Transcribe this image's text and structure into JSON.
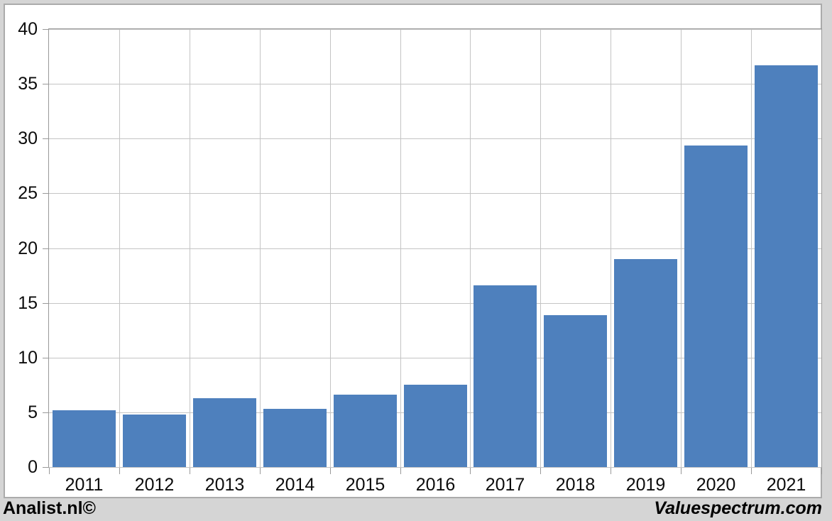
{
  "chart_data": {
    "type": "bar",
    "title": "",
    "categories": [
      "2011",
      "2012",
      "2013",
      "2014",
      "2015",
      "2016",
      "2017",
      "2018",
      "2019",
      "2020",
      "2021"
    ],
    "values": [
      5.2,
      4.8,
      6.3,
      5.3,
      6.6,
      7.5,
      16.6,
      13.9,
      19.0,
      29.4,
      36.7
    ],
    "ylim": [
      0,
      40
    ],
    "yticks": [
      0,
      5,
      10,
      15,
      20,
      25,
      30,
      35,
      40
    ],
    "xlabel": "",
    "ylabel": "",
    "grid": "both",
    "legend": "none",
    "bar_color": "#4e80bd",
    "gridline_color": "#c4c4c4",
    "axis_color": "#999999",
    "plot_background": "#ffffff",
    "page_background": "#d5d5d5"
  },
  "footer": {
    "left_credit": "Analist.nl©",
    "right_credit": "Valuespectrum.com"
  }
}
